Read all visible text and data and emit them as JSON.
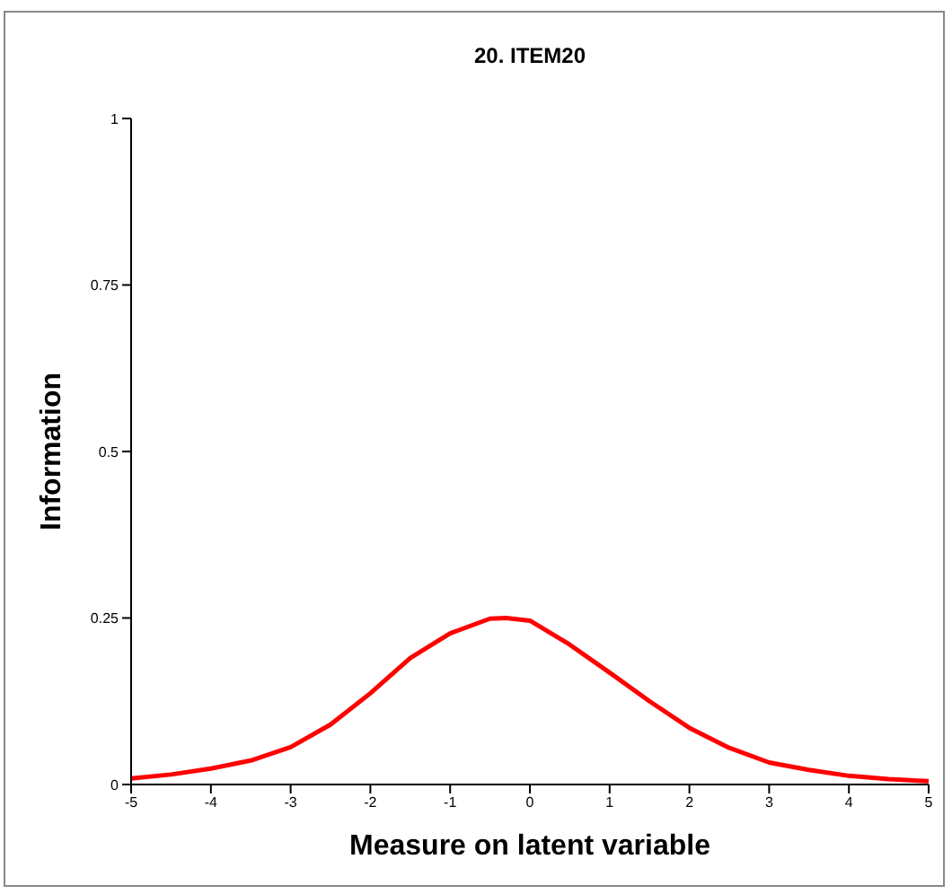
{
  "chart_data": {
    "type": "line",
    "title": "20. ITEM20",
    "xlabel": "Measure on latent variable",
    "ylabel": "Information",
    "x": [
      -5,
      -4.5,
      -4,
      -3.5,
      -3,
      -2.5,
      -2,
      -1.5,
      -1,
      -0.5,
      -0.3,
      0,
      0.5,
      1,
      1.5,
      2,
      2.5,
      3,
      3.5,
      4,
      4.5,
      5
    ],
    "series": [
      {
        "color": "#ff0000",
        "values": [
          0.009,
          0.015,
          0.024,
          0.036,
          0.056,
          0.09,
          0.137,
          0.19,
          0.227,
          0.249,
          0.25,
          0.246,
          0.21,
          0.168,
          0.125,
          0.085,
          0.055,
          0.033,
          0.022,
          0.013,
          0.008,
          0.005
        ]
      }
    ],
    "xlim": [
      -5,
      5
    ],
    "xticks": [
      -5,
      -4,
      -3,
      -2,
      -1,
      0,
      1,
      2,
      3,
      4,
      5
    ],
    "ylim": [
      0,
      1
    ],
    "yticks": [
      0,
      0.25,
      0.5,
      0.75,
      1
    ],
    "grid": false,
    "marker": "none",
    "line_style": "solid"
  }
}
